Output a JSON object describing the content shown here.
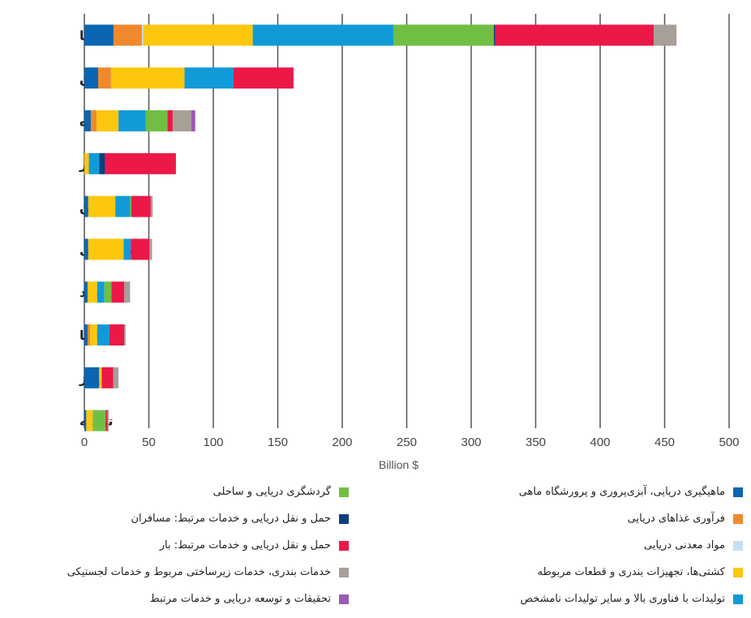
{
  "chart_data": {
    "type": "bar",
    "orientation": "horizontal",
    "stacked": true,
    "xlabel": "Billion $",
    "xlim": [
      0,
      500
    ],
    "xticks": [
      0,
      50,
      100,
      150,
      200,
      250,
      300,
      350,
      400,
      450,
      500
    ],
    "grid": true,
    "legend_position": "bottom",
    "categories": [
      "اتحادیه اروپا",
      "چین",
      "ایالات متحده",
      "سنگاپور",
      "ژاپن",
      "کره جنوبی",
      "هند",
      "بریتانیا",
      "نروژ",
      "ترکیه"
    ],
    "series": [
      {
        "name": "ماهیگیری دریایی، آبزی‌پروری و پرورشگاه ماهی",
        "color": "#0a66b0",
        "values": [
          22.6,
          10.7,
          5,
          0,
          3,
          3,
          2.5,
          2.5,
          11.5,
          1.5
        ]
      },
      {
        "name": "فرآوری غذاهای دریایی",
        "color": "#f0892e",
        "values": [
          22,
          10,
          4.5,
          0,
          0,
          0,
          0,
          2,
          0,
          0
        ]
      },
      {
        "name": "مواد معدنی دریایی",
        "color": "#c5e0f5",
        "values": [
          1,
          0,
          0,
          0,
          0,
          0,
          0,
          0,
          0,
          0
        ]
      },
      {
        "name": "کشتی‌ها، تجهیزات بندری و قطعات مربوطه",
        "color": "#fdc70e",
        "values": [
          85,
          57,
          17,
          3.5,
          21,
          27.5,
          7.5,
          5.5,
          2,
          5
        ]
      },
      {
        "name": "تولیدات با فناوری بالا و سایر تولیدات نامشخص",
        "color": "#109bd8",
        "values": [
          109,
          38,
          21,
          8,
          11.5,
          5.5,
          5.5,
          9.5,
          0,
          0
        ]
      },
      {
        "name": "گردشگری دریایی و ساحلی",
        "color": "#70bf44",
        "values": [
          78,
          0,
          17,
          0,
          1,
          0,
          5.5,
          0,
          0,
          10
        ]
      },
      {
        "name": "حمل و نقل دریایی و خدمات مرتبط: مسافران",
        "color": "#0c3f7e",
        "values": [
          1,
          0,
          0,
          4.5,
          0,
          0,
          0,
          0,
          0,
          0
        ]
      },
      {
        "name": "حمل و نقل دریایی و خدمات مرتبط: بار",
        "color": "#ec1847",
        "values": [
          123,
          46.5,
          4,
          55,
          15,
          14.5,
          10,
          11.5,
          9,
          1.5
        ]
      },
      {
        "name": "خدمات بندری، خدمات زیرساختی مربوط و خدمات لجستیکی",
        "color": "#a89f99",
        "values": [
          17.6,
          0,
          14.5,
          0,
          1.5,
          2,
          4.5,
          1,
          4,
          1
        ]
      },
      {
        "name": "تحقیقات و توسعه دریایی و خدمات مرتبط",
        "color": "#9b59b6",
        "values": [
          0,
          0,
          3,
          0,
          0,
          0,
          0,
          0,
          0,
          0
        ]
      }
    ],
    "legend_columns": {
      "right": [
        0,
        1,
        2,
        3,
        4
      ],
      "left": [
        5,
        6,
        7,
        8,
        9
      ]
    }
  }
}
